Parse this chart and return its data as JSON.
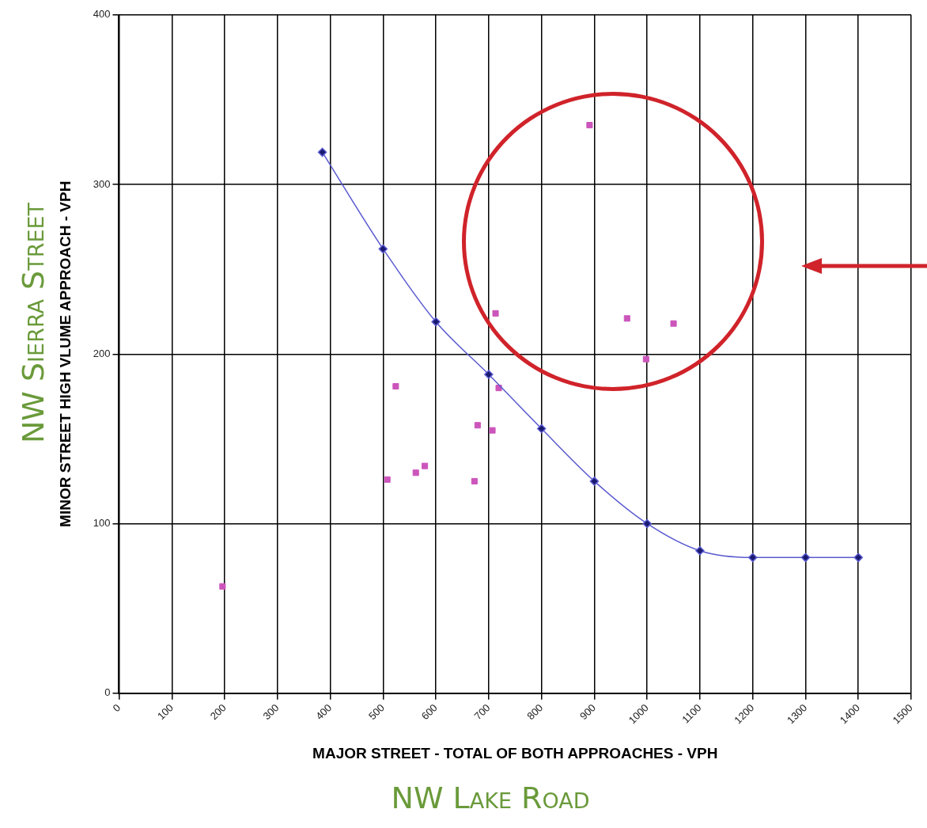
{
  "chart_data": {
    "type": "scatter",
    "xlabel": "MAJOR STREET - TOTAL OF BOTH APPROACHES - VPH",
    "ylabel": "MINOR STREET HIGH VLUME APPROACH - VPH",
    "annotations": [
      "NW Sierra Street",
      "NW Lake Road"
    ],
    "xlim": [
      0,
      1500
    ],
    "xticks": [
      0,
      100,
      200,
      300,
      400,
      500,
      600,
      700,
      800,
      900,
      1000,
      1100,
      1200,
      1300,
      1400,
      1500
    ],
    "ylim": [
      0,
      400
    ],
    "yticks": [
      0,
      100,
      200,
      300,
      400
    ],
    "grid": true,
    "legend": false,
    "series": [
      {
        "type": "line",
        "color": "#1a1a70",
        "marker": "diamond",
        "x": [
          385,
          500,
          600,
          700,
          800,
          900,
          1000,
          1100,
          1200,
          1300,
          1400
        ],
        "values": [
          319,
          262,
          219,
          188,
          156,
          125,
          100,
          84,
          80,
          80,
          80
        ]
      },
      {
        "type": "scatter",
        "color": "#cc55bb",
        "marker": "square",
        "x": [
          196,
          524,
          508,
          562,
          579,
          673,
          679,
          707,
          713,
          719,
          891,
          962,
          998,
          1050
        ],
        "values": [
          63,
          181,
          126,
          130,
          134,
          125,
          158,
          155,
          224,
          180,
          335,
          221,
          197,
          218
        ]
      }
    ]
  }
}
